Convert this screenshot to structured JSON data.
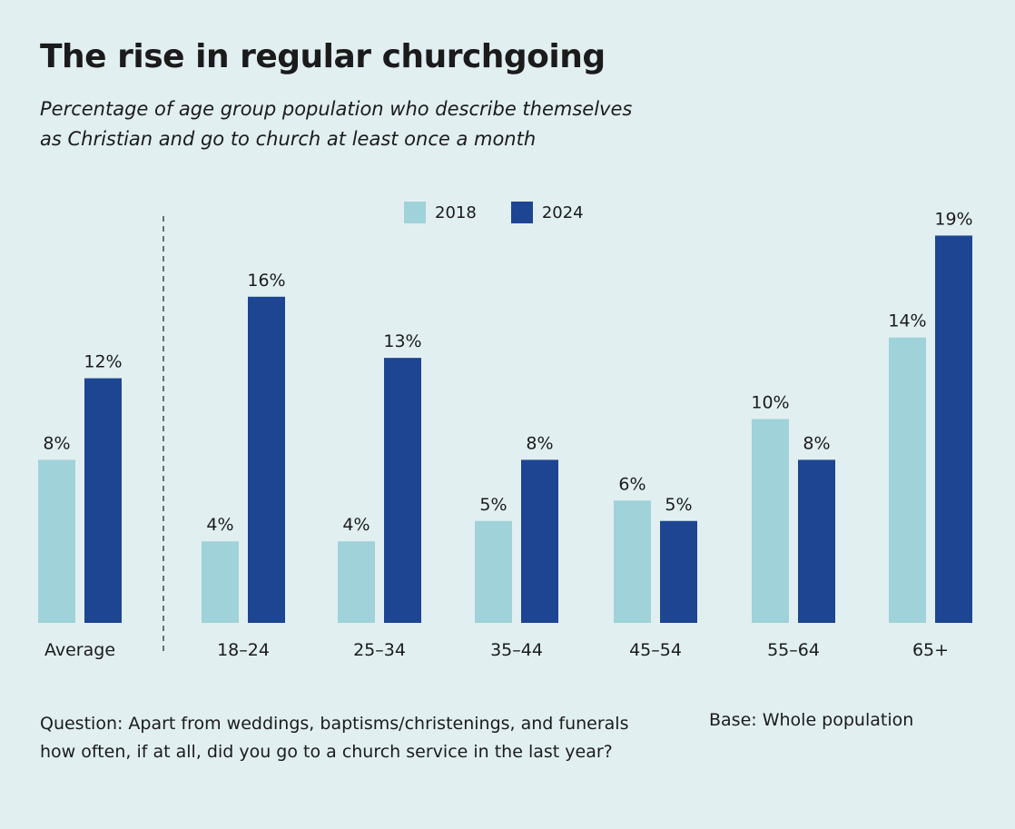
{
  "chart_data": {
    "type": "bar",
    "title": "The rise in regular churchgoing",
    "subtitle": "Percentage of age group population who describe themselves as Christian and go to church at least once a month",
    "categories": [
      "Average",
      "18–24",
      "25–34",
      "35–44",
      "45–54",
      "55–64",
      "65+"
    ],
    "series": [
      {
        "name": "2018",
        "color": "#9fd2d9",
        "values": [
          8,
          4,
          4,
          5,
          6,
          10,
          14
        ]
      },
      {
        "name": "2024",
        "color": "#1d4592",
        "values": [
          12,
          16,
          13,
          8,
          5,
          8,
          19
        ]
      }
    ],
    "value_suffix": "%",
    "ylim": [
      0,
      20
    ],
    "legend": "top-center",
    "grid": false
  },
  "subtitle_lines": [
    "Percentage of age group population who describe themselves",
    "as Christian and go to church at least once a month"
  ],
  "footnote": "Question: Apart from weddings, baptisms/christenings, and funerals how often, if at all, did you go to a church service in the last year?",
  "base": "Base: Whole population"
}
